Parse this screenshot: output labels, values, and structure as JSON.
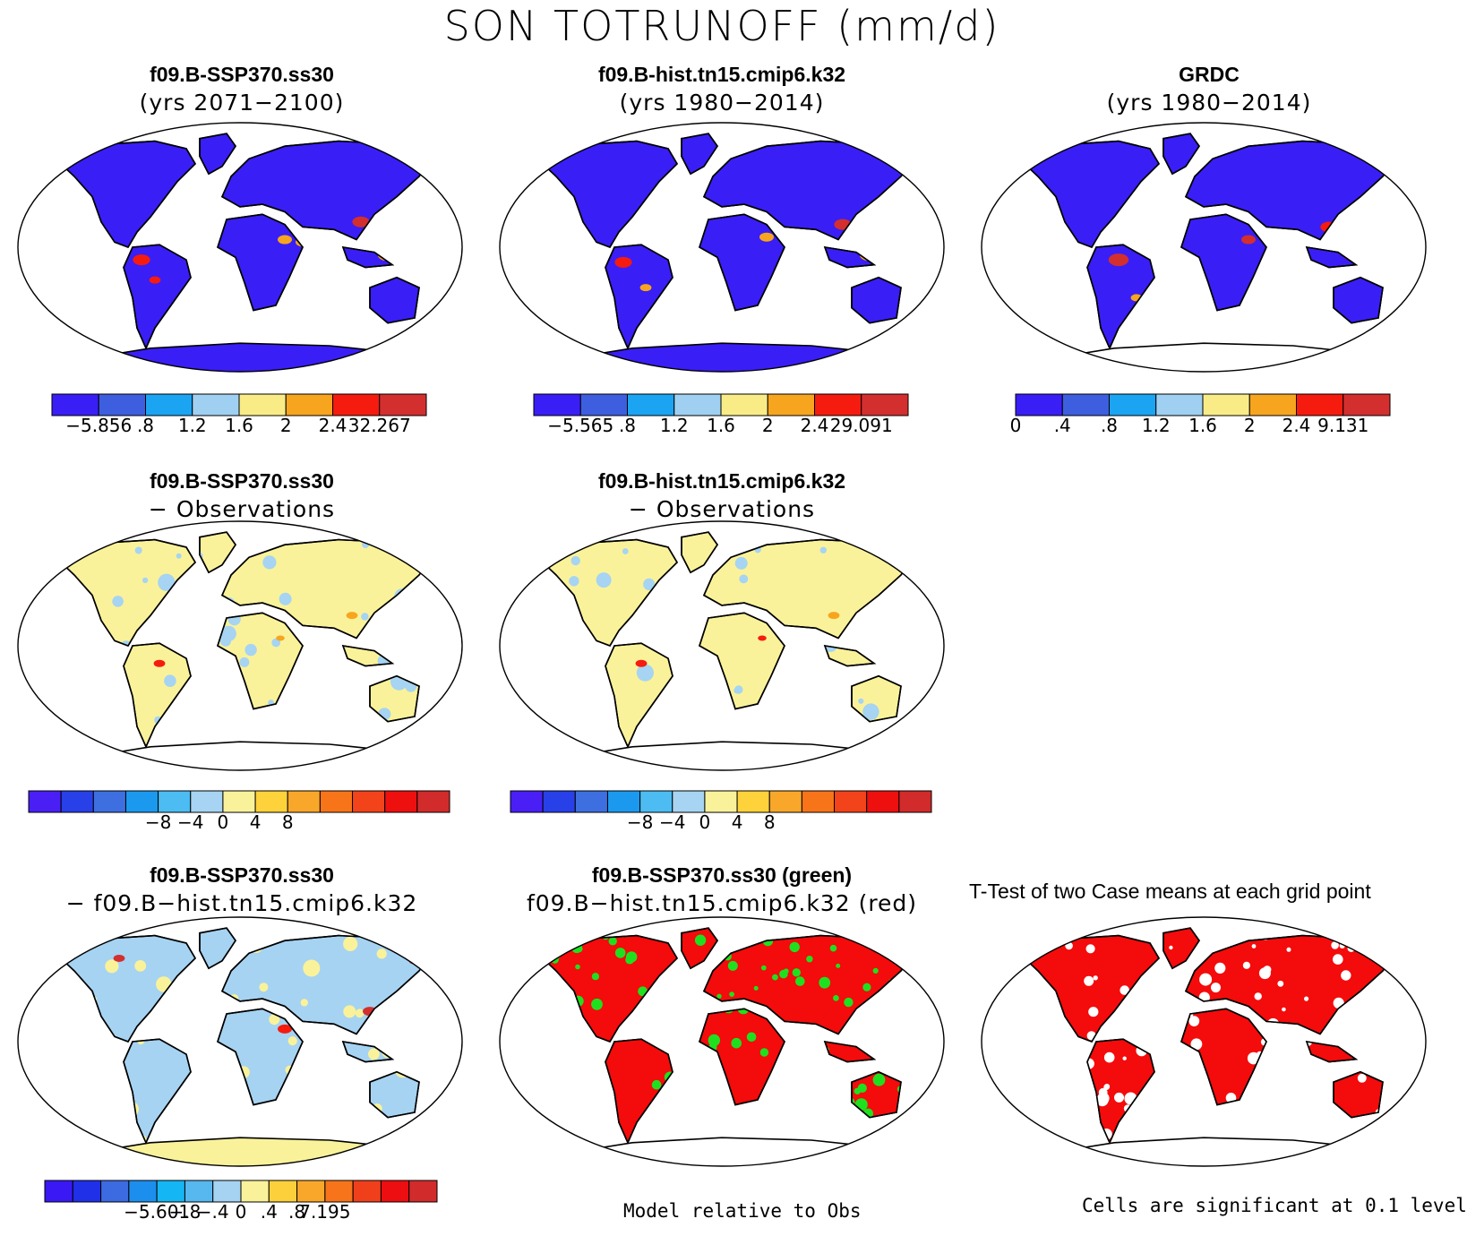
{
  "title": "SON TOTRUNOFF (mm/d)",
  "palettes": {
    "abs": [
      "#3a1ef6",
      "#3d5fdf",
      "#1ba4f2",
      "#9fd0f2",
      "#f9ec86",
      "#f7a51f",
      "#f61b0f",
      "#d32f2f"
    ],
    "diff": [
      "#4a1ff5",
      "#2840e8",
      "#3d6fe0",
      "#1b99ef",
      "#4cbcf2",
      "#a6d4f2",
      "#faf29a",
      "#fdd23a",
      "#f9a72a",
      "#f77419",
      "#f2431a",
      "#ee0f0f",
      "#d12b2b"
    ],
    "mdiff": [
      "#3918f5",
      "#2030e8",
      "#3c6ae0",
      "#1c8fee",
      "#15b6f4",
      "#57b7ef",
      "#a6d3f2",
      "#faf29a",
      "#fcd03a",
      "#f9a72a",
      "#f7741a",
      "#f0401b",
      "#ec0e10",
      "#d22b2b"
    ],
    "land_green": "#1fe01f",
    "land_red": "#f40b0b"
  },
  "panels": {
    "p1": {
      "line1": "f09.B-SSP370.ss30",
      "line2": "(yrs 2071−2100)"
    },
    "p2": {
      "line1": "f09.B-hist.tn15.cmip6.k32",
      "line2": "(yrs 1980−2014)"
    },
    "p3": {
      "line1": "GRDC",
      "line2": "(yrs 1980−2014)"
    },
    "p4": {
      "line1": "f09.B-SSP370.ss30",
      "line2": "− Observations"
    },
    "p5": {
      "line1": "f09.B-hist.tn15.cmip6.k32",
      "line2": "− Observations"
    },
    "p7": {
      "line1": "f09.B-SSP370.ss30",
      "line2": "− f09.B−hist.tn15.cmip6.k32"
    },
    "p8": {
      "line1": "f09.B-SSP370.ss30 (green)",
      "line2": "f09.B−hist.tn15.cmip6.k32 (red)"
    },
    "p9": {
      "line1": "T-Test of two Case means at each grid point"
    }
  },
  "colorbars": {
    "cb1": [
      "−5.856",
      ".8",
      "1.2",
      "1.6",
      "2",
      "2.4",
      "32.267"
    ],
    "cb2": [
      "−5.565",
      ".8",
      "1.2",
      "1.6",
      "2",
      "2.4",
      "29.091"
    ],
    "cb3": [
      "0",
      ".4",
      ".8",
      "1.2",
      "1.6",
      "2",
      "2.4",
      "9.131"
    ],
    "cb4": [
      "−8",
      "−4",
      "0",
      "4",
      "8"
    ],
    "cb5": [
      "−8",
      "−4",
      "0",
      "4",
      "8"
    ],
    "cb7": [
      "−5.601",
      "−.8",
      "−.4",
      "0",
      ".4",
      ".8",
      "7.195"
    ]
  },
  "notes": {
    "model_relative": "Model relative to Obs",
    "cells_sig": "Cells are significant at 0.1 level"
  }
}
